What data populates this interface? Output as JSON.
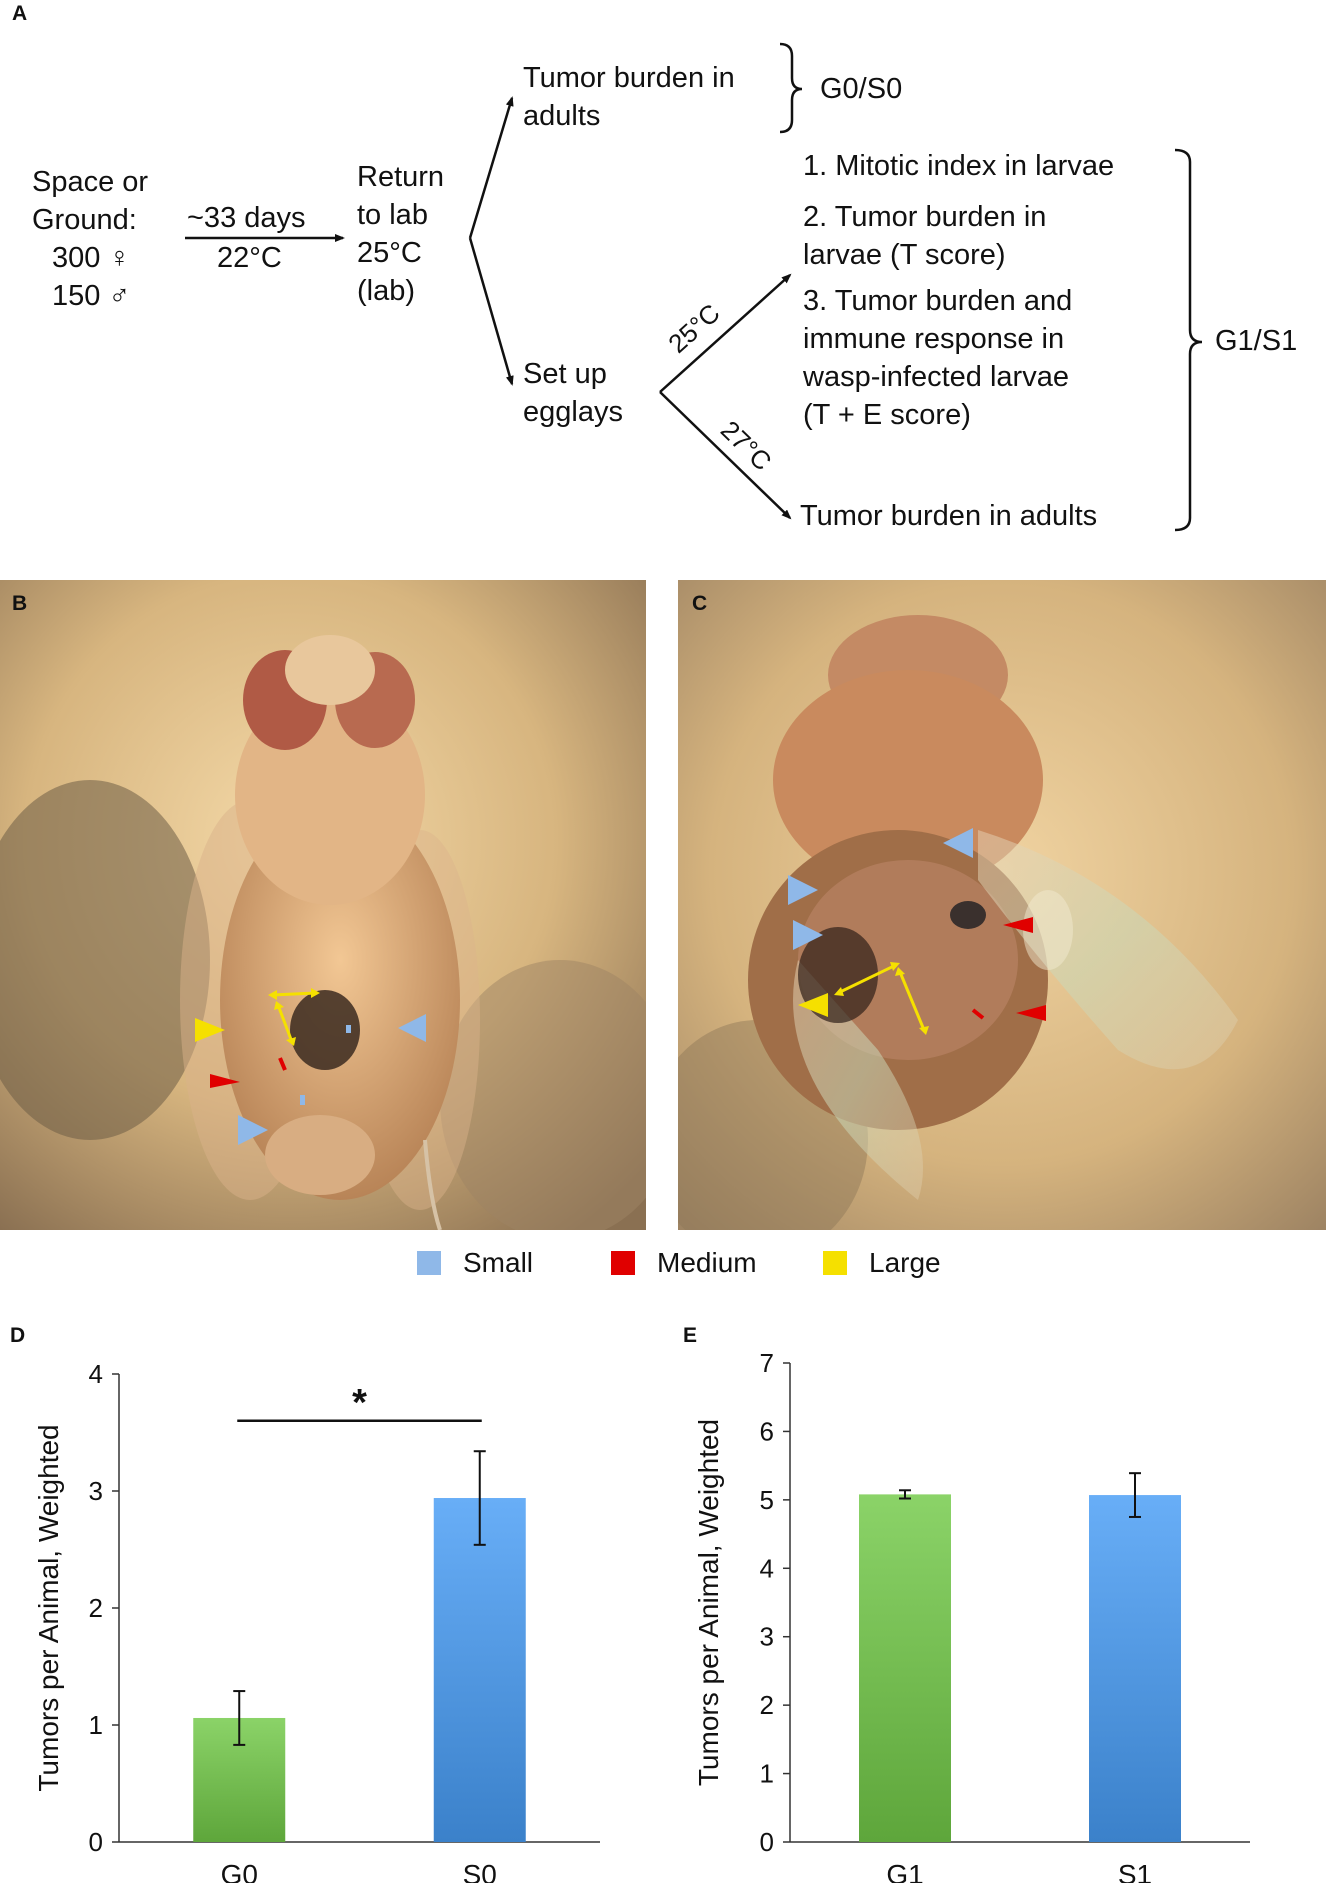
{
  "panel_a": {
    "letter": "A",
    "start_line1": "Space or",
    "start_line2": "Ground:",
    "start_female": "300 ♀",
    "start_male": "150 ♂",
    "transit_top": "~33 days",
    "transit_bottom": "22°C",
    "return_line1": "Return",
    "return_line2": "to lab",
    "return_line3": "25°C",
    "return_line4": "(lab)",
    "adults_line1": "Tumor burden in",
    "adults_line2": "adults",
    "g0s0_label": "G0/S0",
    "egglays_line1": "Set up",
    "egglays_line2": "egglays",
    "temp_25": "25°C",
    "temp_27": "27°C",
    "item1": "1. Mitotic index in larvae",
    "item2_line1": "2. Tumor burden in",
    "item2_line2": "larvae (T score)",
    "item3_line1": "3. Tumor burden and",
    "item3_line2": "immune response in",
    "item3_line3": "wasp-infected larvae",
    "item3_line4": "(T + E score)",
    "item4": "Tumor burden in adults",
    "g1s1_label": "G1/S1"
  },
  "panel_b": {
    "letter": "B"
  },
  "panel_c": {
    "letter": "C"
  },
  "legend": {
    "items": [
      {
        "label": "Small",
        "color": "#8fb8e8"
      },
      {
        "label": "Medium",
        "color": "#e00000"
      },
      {
        "label": "Large",
        "color": "#f5e000"
      }
    ]
  },
  "colors": {
    "small": "#8fb8e8",
    "medium": "#e00000",
    "large": "#f5e000",
    "arrow": "#f5e000",
    "ground_bar": "#6db54a",
    "space_bar": "#4a90d9"
  },
  "chart_data": [
    {
      "panel": "D",
      "type": "bar",
      "categories": [
        "G0",
        "S0"
      ],
      "values": [
        1.06,
        2.94
      ],
      "errors": [
        0.23,
        0.4
      ],
      "bar_colors": [
        "#6db54a",
        "#4a90d9"
      ],
      "ylabel": "Tumors per Animal, Weighted",
      "ylim": [
        0,
        4
      ],
      "yticks": [
        "0",
        "1",
        "2",
        "3",
        "4"
      ],
      "significance": "*",
      "grid": false
    },
    {
      "panel": "E",
      "type": "bar",
      "categories": [
        "G1",
        "S1"
      ],
      "values": [
        5.08,
        5.07
      ],
      "errors": [
        0.06,
        0.32
      ],
      "bar_colors": [
        "#6db54a",
        "#4a90d9"
      ],
      "ylabel": "Tumors per Animal, Weighted",
      "ylim": [
        0,
        7
      ],
      "yticks": [
        "0",
        "1",
        "2",
        "3",
        "4",
        "5",
        "6",
        "7"
      ],
      "grid": false
    }
  ]
}
